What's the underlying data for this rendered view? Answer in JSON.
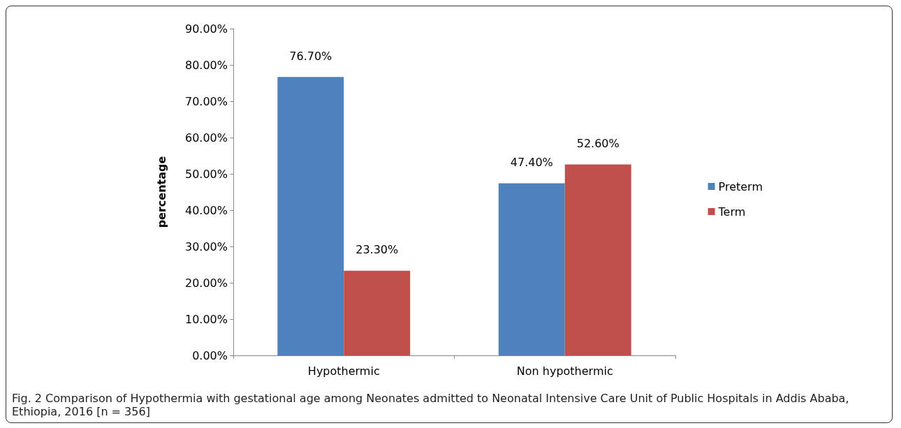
{
  "chart_data": {
    "type": "bar",
    "ylabel": "percentage",
    "categories": [
      "Hypothermic",
      "Non hypothermic"
    ],
    "series": [
      {
        "name": "Preterm",
        "color": "#4f81bd",
        "values": [
          76.7,
          47.4
        ],
        "value_labels": [
          "76.70%",
          "47.40%"
        ]
      },
      {
        "name": "Term",
        "color": "#c0504d",
        "values": [
          23.3,
          52.6
        ],
        "value_labels": [
          "23.30%",
          "52.60%"
        ]
      }
    ],
    "ylim": [
      0,
      90
    ],
    "yticks": [
      {
        "value": 0,
        "label": "0.00%"
      },
      {
        "value": 10,
        "label": "10.00%"
      },
      {
        "value": 20,
        "label": "20.00%"
      },
      {
        "value": 30,
        "label": "30.00%"
      },
      {
        "value": 40,
        "label": "40.00%"
      },
      {
        "value": 50,
        "label": "50.00%"
      },
      {
        "value": 60,
        "label": "60.00%"
      },
      {
        "value": 70,
        "label": "70.00%"
      },
      {
        "value": 80,
        "label": "80.00%"
      },
      {
        "value": 90,
        "label": "90.00%"
      }
    ],
    "grid": false,
    "legend": "right",
    "annotations": [
      "Fig. 2 Comparison of Hypothermia with gestational age among Neonates admitted to Neonatal Intensive Care Unit of Public Hospitals in Addis Ababa, Ethiopia, 2016 [n = 356]"
    ]
  }
}
